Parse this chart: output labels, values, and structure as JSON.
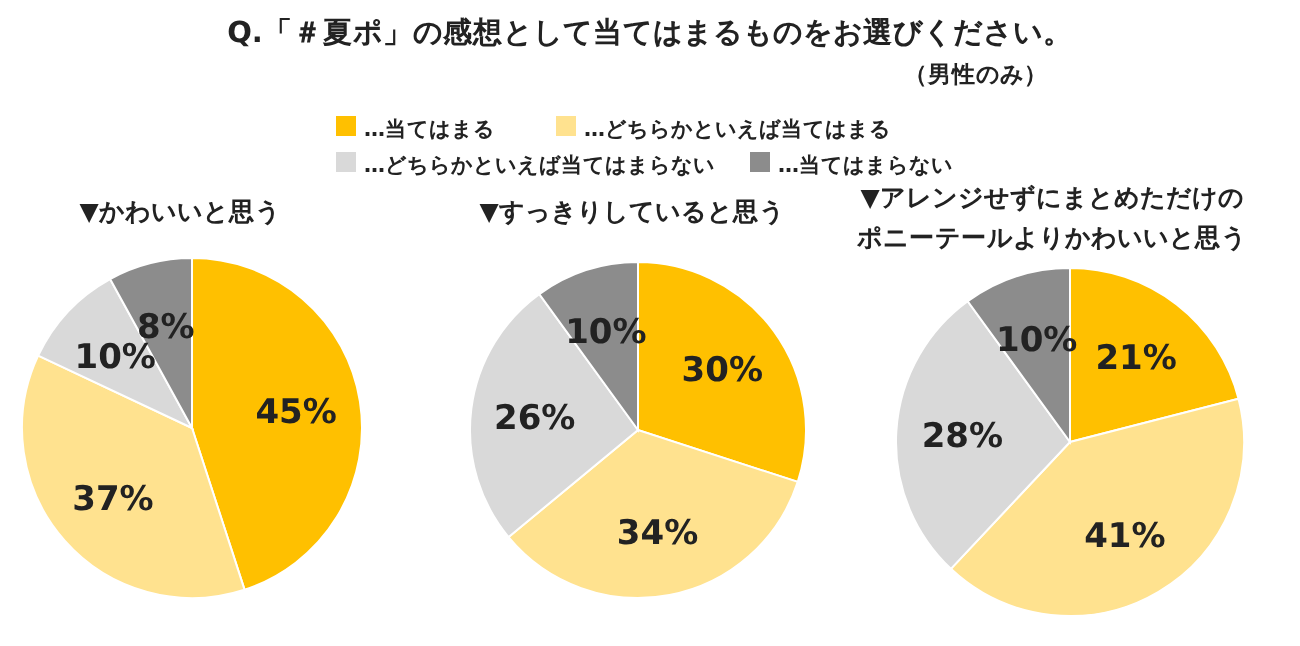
{
  "chart_data": [
    {
      "type": "other",
      "title": "Q.「＃夏ポ」の感想として当てはまるものをお選びください。",
      "annotations": [
        "（男性のみ）"
      ]
    },
    {
      "type": "pie",
      "title": "▼かわいいと思う",
      "categories": [
        "…当てはまる",
        "…どちらかといえば当てはまる",
        "…どちらかといえば当てはまらない",
        "…当てはまらない"
      ],
      "values": [
        45,
        37,
        10,
        8
      ],
      "value_labels": [
        "45%",
        "37%",
        "10%",
        "8%"
      ],
      "colors": [
        "#ffc000",
        "#ffe28f",
        "#d9d9d9",
        "#8c8c8c"
      ],
      "legend": "top"
    },
    {
      "type": "pie",
      "title": "▼すっきりしていると思う",
      "values": [
        30,
        34,
        26,
        10
      ],
      "value_labels": [
        "30%",
        "34%",
        "26%",
        "10%"
      ],
      "colors": [
        "#ffc000",
        "#ffe28f",
        "#d9d9d9",
        "#8c8c8c"
      ]
    },
    {
      "type": "pie",
      "title": "▼アレンジせずにまとめただけのポニーテールよりかわいいと思う",
      "values": [
        21,
        41,
        28,
        10
      ],
      "value_labels": [
        "21%",
        "41%",
        "28%",
        "10%"
      ],
      "colors": [
        "#ffc000",
        "#ffe28f",
        "#d9d9d9",
        "#8c8c8c"
      ]
    }
  ]
}
